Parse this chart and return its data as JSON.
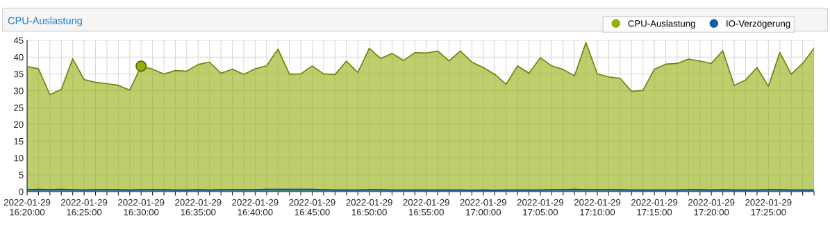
{
  "chart_data": {
    "type": "area",
    "title": "CPU-Auslastung",
    "x": [
      "2022-01-29T16:20",
      "2022-01-29T16:21",
      "2022-01-29T16:22",
      "2022-01-29T16:23",
      "2022-01-29T16:24",
      "2022-01-29T16:25",
      "2022-01-29T16:26",
      "2022-01-29T16:27",
      "2022-01-29T16:28",
      "2022-01-29T16:29",
      "2022-01-29T16:30",
      "2022-01-29T16:31",
      "2022-01-29T16:32",
      "2022-01-29T16:33",
      "2022-01-29T16:34",
      "2022-01-29T16:35",
      "2022-01-29T16:36",
      "2022-01-29T16:37",
      "2022-01-29T16:38",
      "2022-01-29T16:39",
      "2022-01-29T16:40",
      "2022-01-29T16:41",
      "2022-01-29T16:42",
      "2022-01-29T16:43",
      "2022-01-29T16:44",
      "2022-01-29T16:45",
      "2022-01-29T16:46",
      "2022-01-29T16:47",
      "2022-01-29T16:48",
      "2022-01-29T16:49",
      "2022-01-29T16:50",
      "2022-01-29T16:51",
      "2022-01-29T16:52",
      "2022-01-29T16:53",
      "2022-01-29T16:54",
      "2022-01-29T16:55",
      "2022-01-29T16:56",
      "2022-01-29T16:57",
      "2022-01-29T16:58",
      "2022-01-29T16:59",
      "2022-01-29T17:00",
      "2022-01-29T17:01",
      "2022-01-29T17:02",
      "2022-01-29T17:03",
      "2022-01-29T17:04",
      "2022-01-29T17:05",
      "2022-01-29T17:06",
      "2022-01-29T17:07",
      "2022-01-29T17:08",
      "2022-01-29T17:09",
      "2022-01-29T17:10",
      "2022-01-29T17:11",
      "2022-01-29T17:12",
      "2022-01-29T17:13",
      "2022-01-29T17:14",
      "2022-01-29T17:15",
      "2022-01-29T17:16",
      "2022-01-29T17:17",
      "2022-01-29T17:18",
      "2022-01-29T17:19",
      "2022-01-29T17:20",
      "2022-01-29T17:21",
      "2022-01-29T17:22",
      "2022-01-29T17:23",
      "2022-01-29T17:24",
      "2022-01-29T17:25",
      "2022-01-29T17:26",
      "2022-01-29T17:27",
      "2022-01-29T17:28",
      "2022-01-29T17:29"
    ],
    "series": [
      {
        "name": "CPU-Auslastung",
        "color": "#94ae0a",
        "values": [
          37.2,
          36.5,
          28.8,
          30.4,
          39.5,
          33.3,
          32.5,
          32.1,
          31.6,
          30.2,
          37.3,
          36.4,
          35.0,
          36.0,
          35.8,
          37.8,
          38.5,
          35.2,
          36.4,
          34.9,
          36.5,
          37.4,
          42.4,
          34.9,
          35.0,
          37.4,
          35.0,
          34.8,
          38.8,
          35.4,
          42.6,
          39.6,
          41.1,
          39.0,
          41.3,
          41.2,
          41.8,
          38.9,
          41.8,
          38.5,
          36.9,
          34.9,
          31.9,
          37.4,
          35.2,
          39.8,
          37.4,
          36.3,
          34.4,
          44.3,
          35.0,
          34.1,
          33.7,
          29.8,
          30.1,
          36.4,
          37.9,
          38.1,
          39.4,
          38.8,
          38.1,
          41.9,
          31.6,
          33.2,
          36.9,
          31.3,
          41.4,
          34.9,
          38.1,
          42.6
        ]
      },
      {
        "name": "IO-Verzögerung",
        "color": "#115fa6",
        "values": [
          0.6,
          0.7,
          0.6,
          0.7,
          0.6,
          0.5,
          0.6,
          0.6,
          0.6,
          0.5,
          0.6,
          0.6,
          0.6,
          0.5,
          0.5,
          0.6,
          0.5,
          0.6,
          0.6,
          0.6,
          0.6,
          0.7,
          0.7,
          0.7,
          0.7,
          0.7,
          0.6,
          0.5,
          0.5,
          0.5,
          0.6,
          0.6,
          0.5,
          0.5,
          0.5,
          0.5,
          0.5,
          0.5,
          0.5,
          0.4,
          0.5,
          0.4,
          0.5,
          0.5,
          0.5,
          0.5,
          0.6,
          0.6,
          0.7,
          0.6,
          0.6,
          0.6,
          0.6,
          0.5,
          0.5,
          0.5,
          0.5,
          0.5,
          0.6,
          0.6,
          0.5,
          0.6,
          0.5,
          0.5,
          0.5,
          0.6,
          0.6,
          0.5,
          0.5,
          0.5
        ]
      },
      {
        "type": "scatter",
        "color": "#94ae0a",
        "x": [
          "2022-01-29T16:30"
        ],
        "values": [
          37.3
        ]
      }
    ],
    "xlim": [
      "2022-01-29T16:20",
      "2022-01-29T17:29"
    ],
    "xticks": [
      {
        "value": "2022-01-29T16:20",
        "label": "2022-01-29\n16:20:00"
      },
      {
        "value": "2022-01-29T16:21",
        "label": null
      },
      {
        "value": "2022-01-29T16:22",
        "label": null
      },
      {
        "value": "2022-01-29T16:23",
        "label": null
      },
      {
        "value": "2022-01-29T16:24",
        "label": null
      },
      {
        "value": "2022-01-29T16:25",
        "label": "2022-01-29\n16:25:00"
      },
      {
        "value": "2022-01-29T16:26",
        "label": null
      },
      {
        "value": "2022-01-29T16:27",
        "label": null
      },
      {
        "value": "2022-01-29T16:28",
        "label": null
      },
      {
        "value": "2022-01-29T16:29",
        "label": null
      },
      {
        "value": "2022-01-29T16:30",
        "label": "2022-01-29\n16:30:00"
      },
      {
        "value": "2022-01-29T16:31",
        "label": null
      },
      {
        "value": "2022-01-29T16:32",
        "label": null
      },
      {
        "value": "2022-01-29T16:33",
        "label": null
      },
      {
        "value": "2022-01-29T16:34",
        "label": null
      },
      {
        "value": "2022-01-29T16:35",
        "label": "2022-01-29\n16:35:00"
      },
      {
        "value": "2022-01-29T16:36",
        "label": null
      },
      {
        "value": "2022-01-29T16:37",
        "label": null
      },
      {
        "value": "2022-01-29T16:38",
        "label": null
      },
      {
        "value": "2022-01-29T16:39",
        "label": null
      },
      {
        "value": "2022-01-29T16:40",
        "label": "2022-01-29\n16:40:00"
      },
      {
        "value": "2022-01-29T16:41",
        "label": null
      },
      {
        "value": "2022-01-29T16:42",
        "label": null
      },
      {
        "value": "2022-01-29T16:43",
        "label": null
      },
      {
        "value": "2022-01-29T16:44",
        "label": null
      },
      {
        "value": "2022-01-29T16:45",
        "label": "2022-01-29\n16:45:00"
      },
      {
        "value": "2022-01-29T16:46",
        "label": null
      },
      {
        "value": "2022-01-29T16:47",
        "label": null
      },
      {
        "value": "2022-01-29T16:48",
        "label": null
      },
      {
        "value": "2022-01-29T16:49",
        "label": null
      },
      {
        "value": "2022-01-29T16:50",
        "label": "2022-01-29\n16:50:00"
      },
      {
        "value": "2022-01-29T16:51",
        "label": null
      },
      {
        "value": "2022-01-29T16:52",
        "label": null
      },
      {
        "value": "2022-01-29T16:53",
        "label": null
      },
      {
        "value": "2022-01-29T16:54",
        "label": null
      },
      {
        "value": "2022-01-29T16:55",
        "label": "2022-01-29\n16:55:00"
      },
      {
        "value": "2022-01-29T16:56",
        "label": null
      },
      {
        "value": "2022-01-29T16:57",
        "label": null
      },
      {
        "value": "2022-01-29T16:58",
        "label": null
      },
      {
        "value": "2022-01-29T16:59",
        "label": null
      },
      {
        "value": "2022-01-29T17:00",
        "label": "2022-01-29\n17:00:00"
      },
      {
        "value": "2022-01-29T17:01",
        "label": null
      },
      {
        "value": "2022-01-29T17:02",
        "label": null
      },
      {
        "value": "2022-01-29T17:03",
        "label": null
      },
      {
        "value": "2022-01-29T17:04",
        "label": null
      },
      {
        "value": "2022-01-29T17:05",
        "label": "2022-01-29\n17:05:00"
      },
      {
        "value": "2022-01-29T17:06",
        "label": null
      },
      {
        "value": "2022-01-29T17:07",
        "label": null
      },
      {
        "value": "2022-01-29T17:08",
        "label": null
      },
      {
        "value": "2022-01-29T17:09",
        "label": null
      },
      {
        "value": "2022-01-29T17:10",
        "label": "2022-01-29\n17:10:00"
      },
      {
        "value": "2022-01-29T17:11",
        "label": null
      },
      {
        "value": "2022-01-29T17:12",
        "label": null
      },
      {
        "value": "2022-01-29T17:13",
        "label": null
      },
      {
        "value": "2022-01-29T17:14",
        "label": null
      },
      {
        "value": "2022-01-29T17:15",
        "label": "2022-01-29\n17:15:00"
      },
      {
        "value": "2022-01-29T17:16",
        "label": null
      },
      {
        "value": "2022-01-29T17:17",
        "label": null
      },
      {
        "value": "2022-01-29T17:18",
        "label": null
      },
      {
        "value": "2022-01-29T17:19",
        "label": null
      },
      {
        "value": "2022-01-29T17:20",
        "label": "2022-01-29\n17:20:00"
      },
      {
        "value": "2022-01-29T17:21",
        "label": null
      },
      {
        "value": "2022-01-29T17:22",
        "label": null
      },
      {
        "value": "2022-01-29T17:23",
        "label": null
      },
      {
        "value": "2022-01-29T17:24",
        "label": null
      },
      {
        "value": "2022-01-29T17:25",
        "label": "2022-01-29\n17:25:00"
      },
      {
        "value": "2022-01-29T17:26",
        "label": null
      },
      {
        "value": "2022-01-29T17:27",
        "label": null
      },
      {
        "value": "2022-01-29T17:28",
        "label": null
      },
      {
        "value": "2022-01-29T17:29",
        "label": null
      }
    ],
    "ylim": [
      0,
      45
    ],
    "yticks": [
      0,
      5,
      10,
      15,
      20,
      25,
      30,
      35,
      40,
      45
    ],
    "grid": true,
    "legend": "top right"
  }
}
